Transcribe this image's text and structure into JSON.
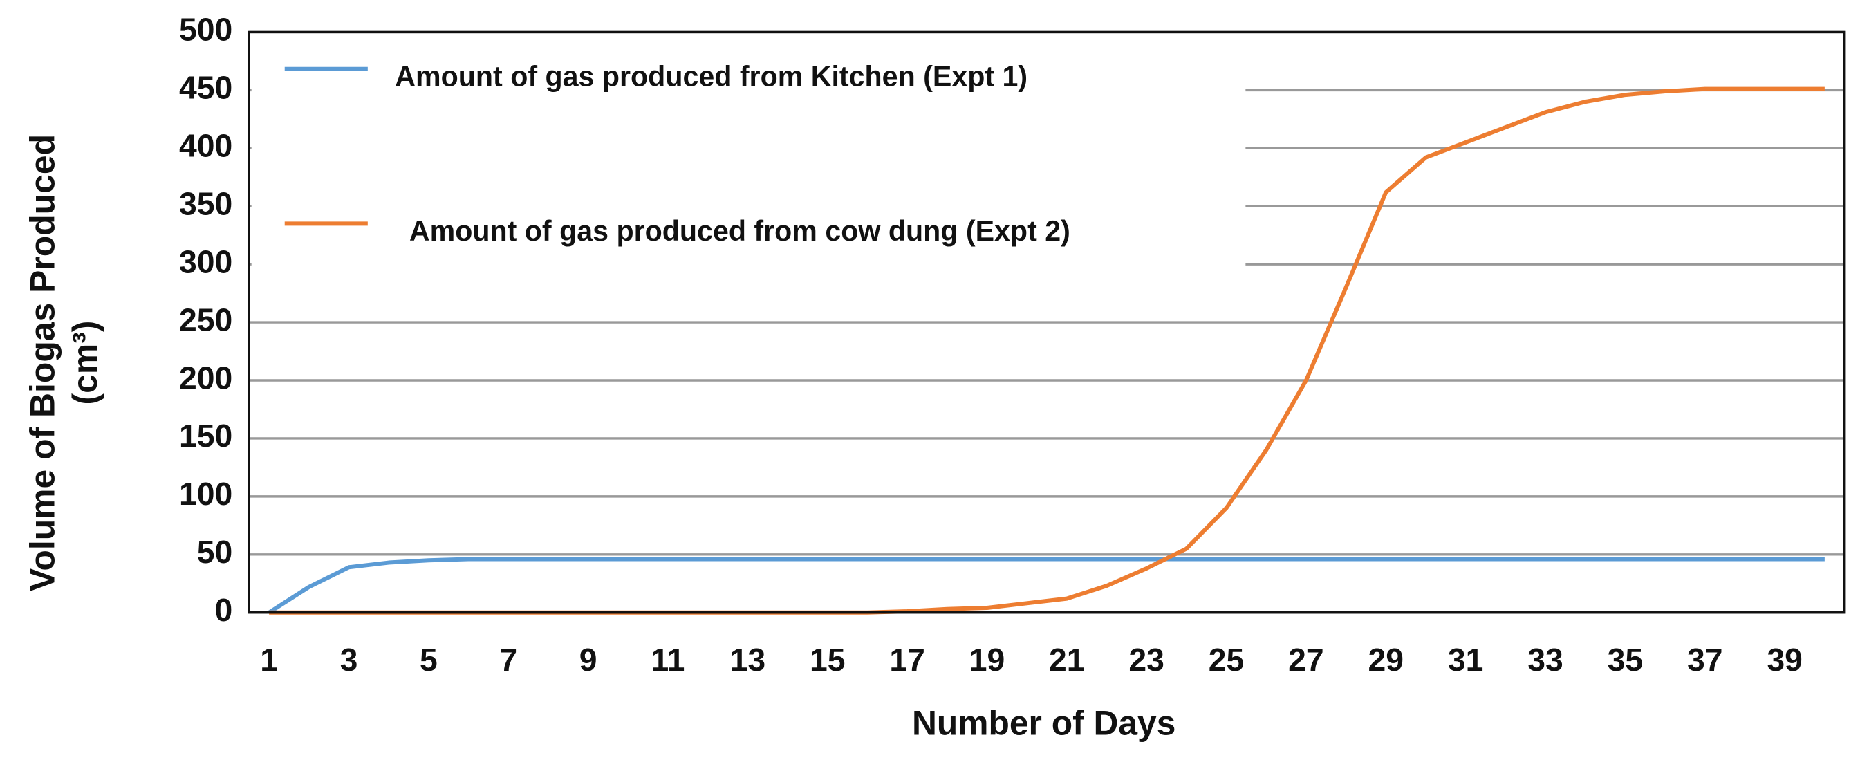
{
  "chart_data": {
    "type": "line",
    "x_label": "Number of Days",
    "y_label": [
      "Volume of Biogas Produced",
      "(cm³)"
    ],
    "x": [
      1,
      2,
      3,
      4,
      5,
      6,
      7,
      8,
      9,
      10,
      11,
      12,
      13,
      14,
      15,
      16,
      17,
      18,
      19,
      20,
      21,
      22,
      23,
      24,
      25,
      26,
      27,
      28,
      29,
      30,
      31,
      32,
      33,
      34,
      35,
      36,
      37,
      38,
      39,
      40
    ],
    "xlim": [
      0.5,
      40.5
    ],
    "xticks": [
      1,
      3,
      5,
      7,
      9,
      11,
      13,
      15,
      17,
      19,
      21,
      23,
      25,
      27,
      29,
      31,
      33,
      35,
      37,
      39
    ],
    "ylim": [
      0,
      500
    ],
    "yticks": [
      0,
      50,
      100,
      150,
      200,
      250,
      300,
      350,
      400,
      450,
      500
    ],
    "grid": true,
    "legend": "upper left",
    "series": [
      {
        "name": "Amount of gas produced from Kitchen (Expt 1)",
        "color": "#5b9bd5",
        "values": [
          0,
          22,
          39,
          43,
          45,
          46,
          46,
          46,
          46,
          46,
          46,
          46,
          46,
          46,
          46,
          46,
          46,
          46,
          46,
          46,
          46,
          46,
          46,
          46,
          46,
          46,
          46,
          46,
          46,
          46,
          46,
          46,
          46,
          46,
          46,
          46,
          46,
          46,
          46,
          46
        ]
      },
      {
        "name": "Amount of gas produced from cow dung (Expt 2)",
        "color": "#ed7d31",
        "values": [
          0,
          0,
          0,
          0,
          0,
          0,
          0,
          0,
          0,
          0,
          0,
          0,
          0,
          0,
          0,
          0,
          1,
          3,
          4,
          8,
          12,
          23,
          38,
          55,
          90,
          140,
          200,
          280,
          362,
          392,
          405,
          418,
          431,
          440,
          446,
          449,
          451,
          451,
          451,
          451
        ]
      }
    ]
  }
}
